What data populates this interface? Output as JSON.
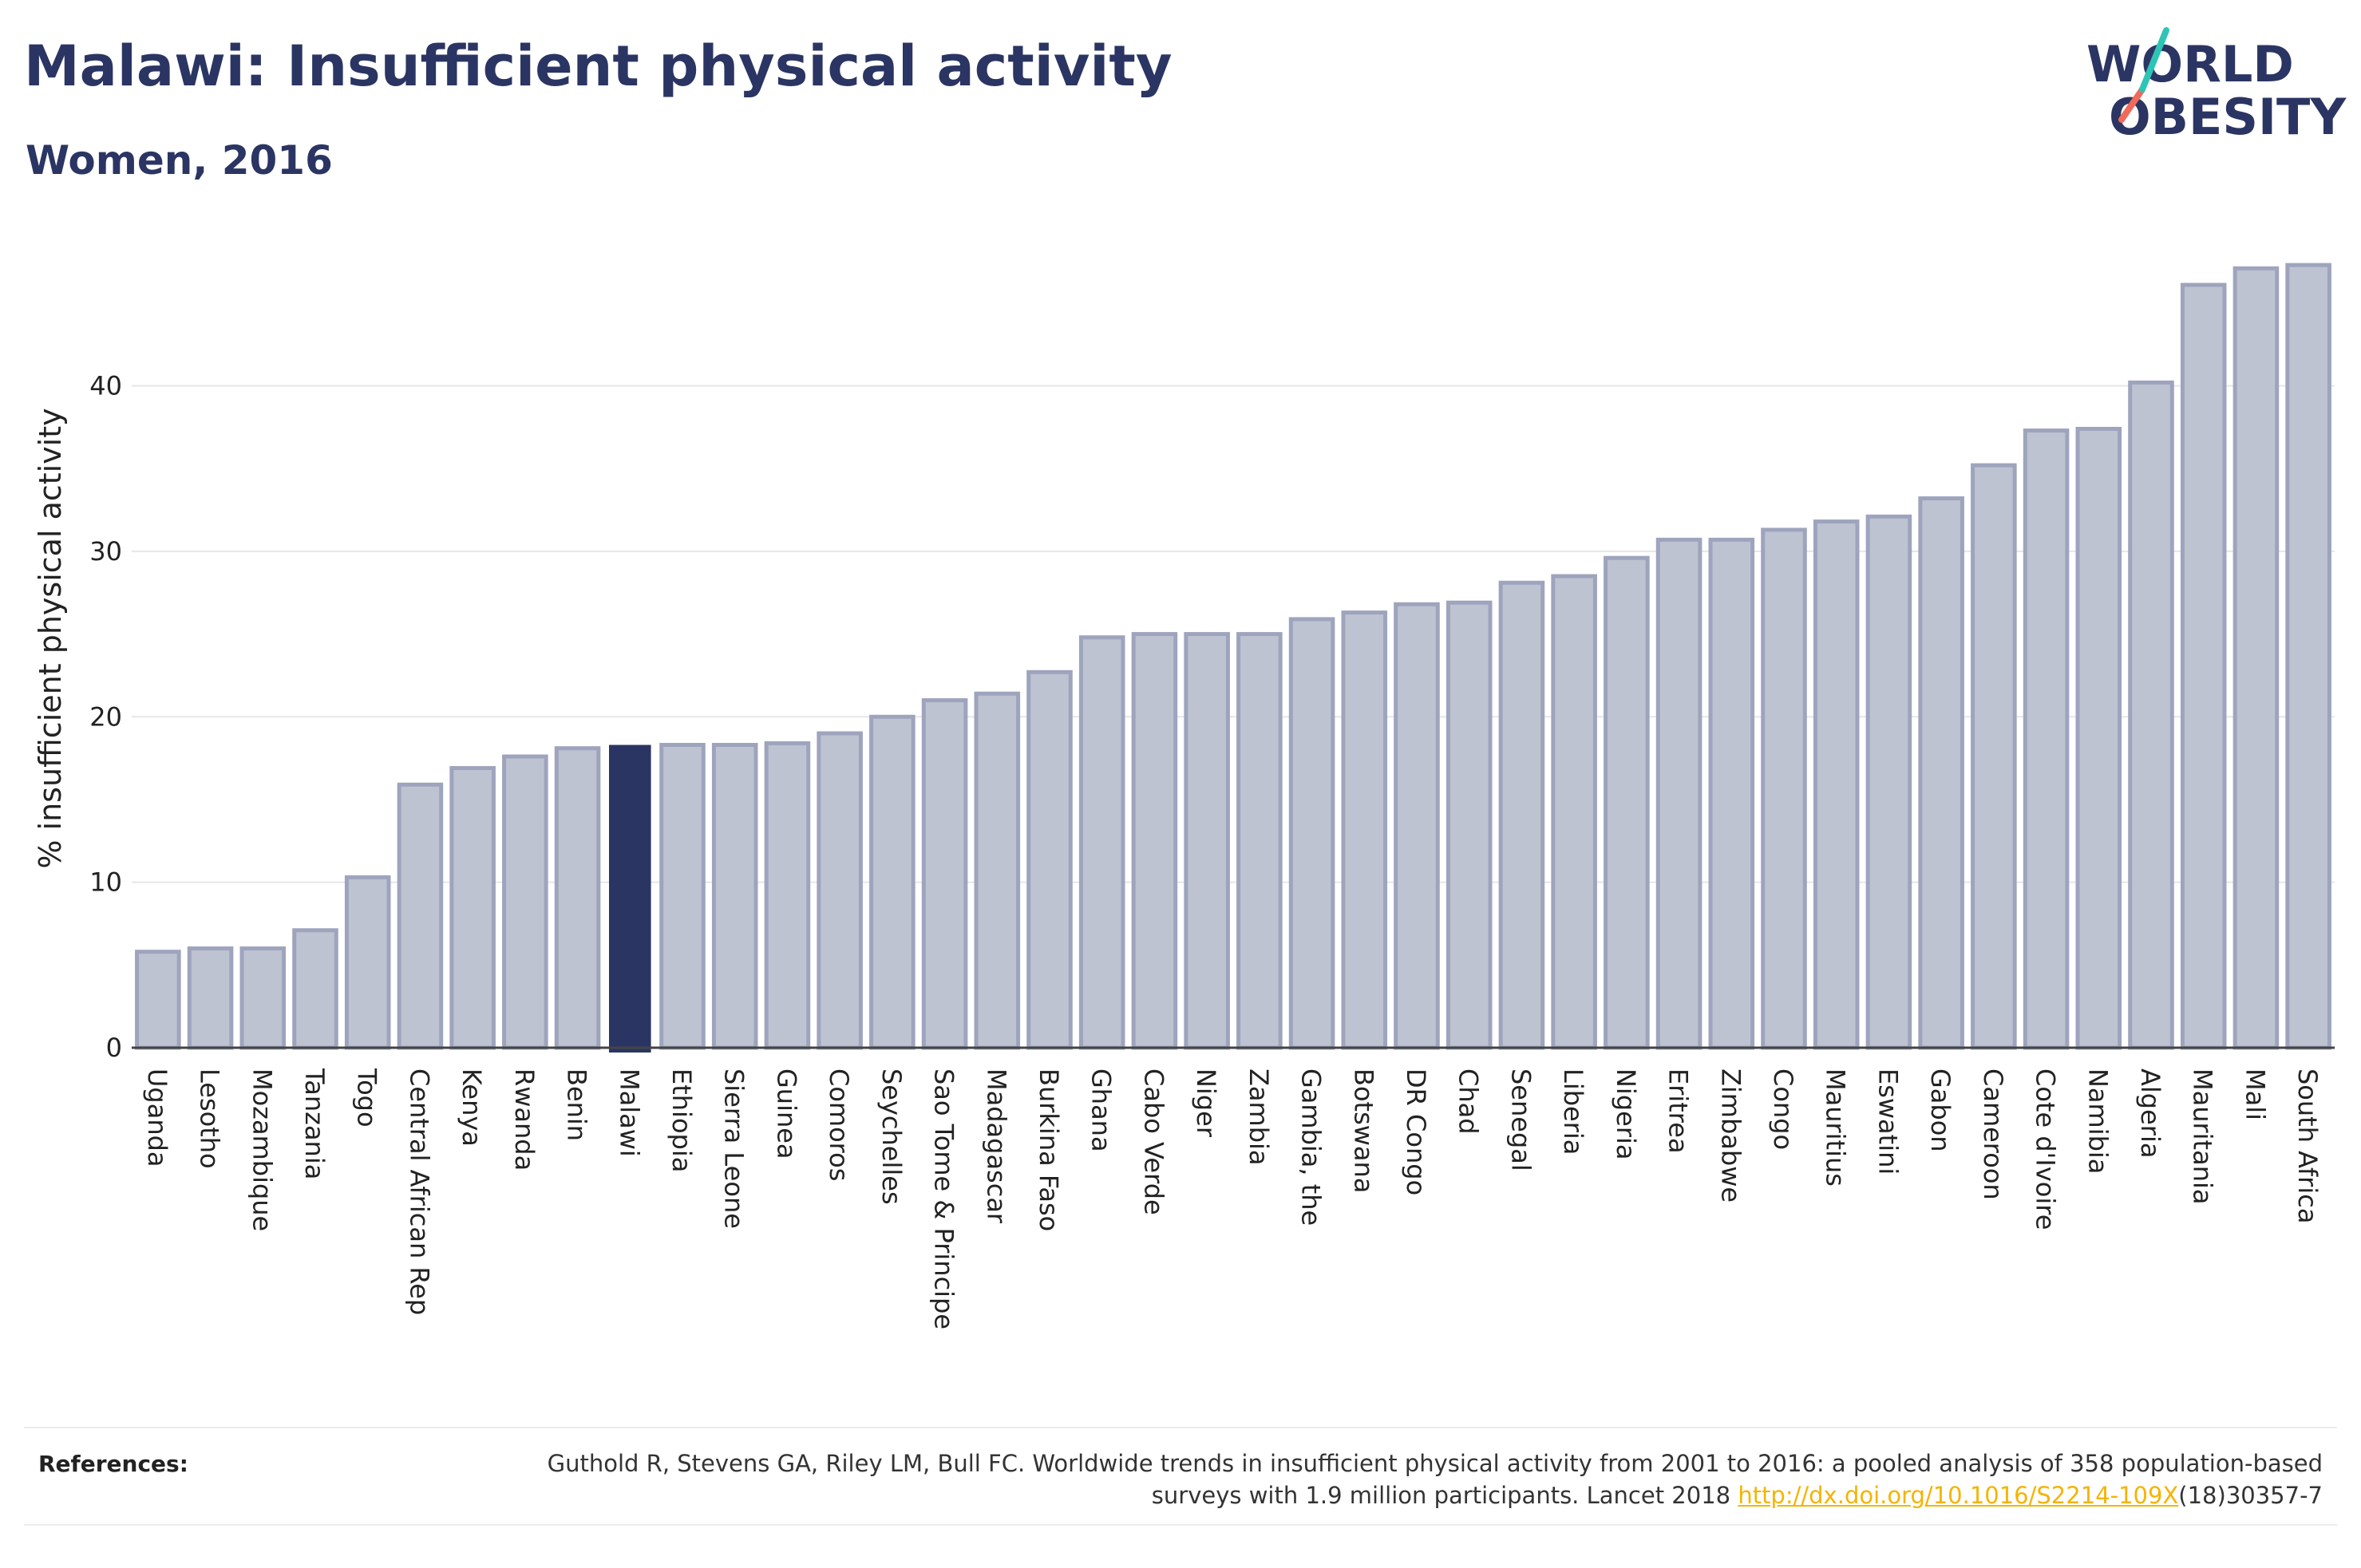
{
  "header": {
    "title": "Malawi: Insufficient physical activity",
    "subtitle": "Women, 2016",
    "logo_line1": "WORLD",
    "logo_line2": "OBESITY"
  },
  "colors": {
    "title": "#2b3563",
    "bar_fill": "#bec3d1",
    "bar_stroke": "#9ea4bd",
    "highlight": "#2b3563",
    "logo_teal": "#2ec4b6",
    "logo_coral": "#f06a5a",
    "link": "#f5b400"
  },
  "chart_data": {
    "type": "bar",
    "ylabel": "% insufficient physical activity",
    "xlabel": "",
    "ylim": [
      0,
      47.5
    ],
    "yticks": [
      0,
      10,
      20,
      30,
      40
    ],
    "grid": true,
    "highlight": "Malawi",
    "categories": [
      "Uganda",
      "Lesotho",
      "Mozambique",
      "Tanzania",
      "Togo",
      "Central African Rep",
      "Kenya",
      "Rwanda",
      "Benin",
      "Malawi",
      "Ethiopia",
      "Sierra Leone",
      "Guinea",
      "Comoros",
      "Seychelles",
      "Sao Tome & Principe",
      "Madagascar",
      "Burkina Faso",
      "Ghana",
      "Cabo Verde",
      "Niger",
      "Zambia",
      "Gambia, the",
      "Botswana",
      "DR Congo",
      "Chad",
      "Senegal",
      "Liberia",
      "Nigeria",
      "Eritrea",
      "Zimbabwe",
      "Congo",
      "Mauritius",
      "Eswatini",
      "Gabon",
      "Cameroon",
      "Cote d'Ivoire",
      "Namibia",
      "Algeria",
      "Mauritania",
      "Mali",
      "South Africa"
    ],
    "values": [
      5.8,
      6.0,
      6.0,
      7.1,
      10.3,
      15.9,
      16.9,
      17.6,
      18.1,
      18.3,
      18.3,
      18.3,
      18.4,
      19.0,
      20.0,
      21.0,
      21.4,
      22.7,
      24.8,
      25.0,
      25.0,
      25.0,
      25.9,
      26.3,
      26.8,
      26.9,
      28.1,
      28.5,
      29.6,
      30.7,
      30.7,
      31.3,
      31.8,
      32.1,
      33.2,
      35.2,
      37.3,
      37.4,
      40.2,
      46.1,
      47.1,
      47.3
    ]
  },
  "references": {
    "label": "References:",
    "text_before": "Guthold R, Stevens GA, Riley LM, Bull FC. Worldwide trends in insufficient physical activity from 2001 to 2016: a pooled analysis of 358 population-based surveys with 1.9 million participants. Lancet 2018 ",
    "link": "http://dx.doi.org/10.1016/S2214-109X",
    "text_after": "(18)30357-7"
  }
}
